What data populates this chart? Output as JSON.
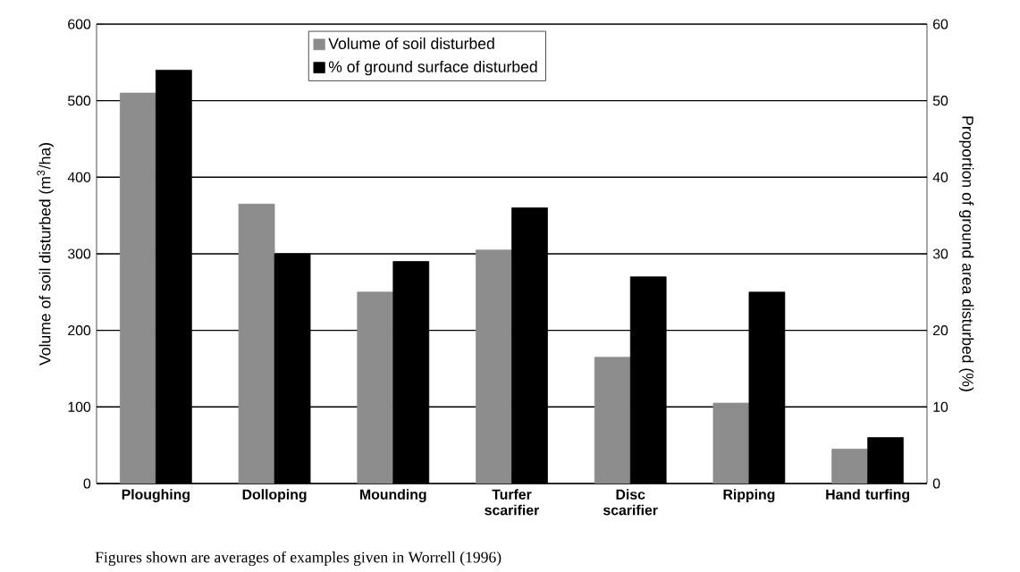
{
  "chart_data": {
    "type": "bar",
    "categories": [
      "Ploughing",
      "Dolloping",
      "Mounding",
      "Turfer scarifier",
      "Disc scarifier",
      "Ripping",
      "Hand turfing"
    ],
    "series": [
      {
        "name": "Volume of soil disturbed",
        "color": "#8c8c8c",
        "values": [
          510,
          365,
          250,
          305,
          165,
          105,
          45
        ]
      },
      {
        "name": "% of ground surface disturbed",
        "color": "#000000",
        "values": [
          54,
          30,
          29,
          36,
          27,
          25,
          6
        ],
        "axis": "y2"
      }
    ],
    "ylabel": "Volume of soil disturbed (m$^{3}$/ha)",
    "y2label": "Proportion of ground area disturbed (%)",
    "ylim": [
      0,
      600
    ],
    "yticks": [
      0,
      100,
      200,
      300,
      400,
      500,
      600
    ],
    "y2lim": [
      0,
      60
    ],
    "y2ticks": [
      0,
      10,
      20,
      30,
      40,
      50,
      60
    ],
    "grid": "y",
    "legend": "top",
    "annotations": [
      "Figures shown are averages of examples given in Worrell (1996)"
    ]
  }
}
